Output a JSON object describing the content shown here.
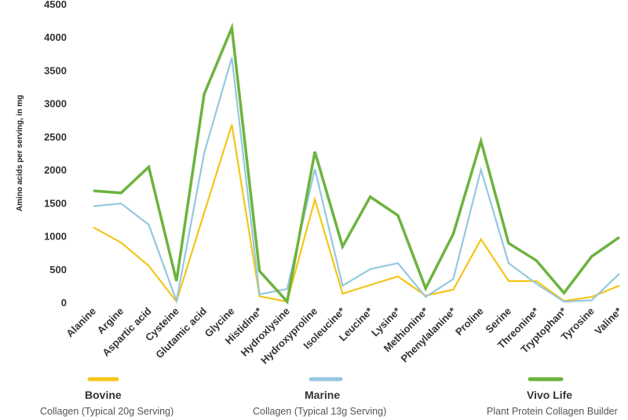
{
  "chart_data": {
    "type": "line",
    "ylabel": "Amino acids per serving, in mg",
    "ylim": [
      0,
      4500
    ],
    "yticks": [
      0,
      500,
      1000,
      1500,
      2000,
      2500,
      3000,
      3500,
      4000,
      4500
    ],
    "grid": false,
    "legend_position": "bottom",
    "categories": [
      "Alanine",
      "Argine",
      "Aspartic acid",
      "Cysteine",
      "Glutamic acid",
      "Glycine",
      "Histidine*",
      "Hydroxlysine",
      "Hydroxyproline",
      "Isoleucine*",
      "Leucine*",
      "Lysine*",
      "Methionine*",
      "Phenylalanine*",
      "Proline",
      "Serine",
      "Threonine*",
      "Tryptophan*",
      "Tyrosine",
      "Valine*"
    ],
    "series": [
      {
        "name": "Bovine",
        "description": "Collagen (Typical 20g Serving)",
        "color": "#f5c518",
        "values": [
          1130,
          900,
          550,
          10,
          1350,
          2680,
          90,
          10,
          1550,
          130,
          260,
          390,
          100,
          190,
          950,
          320,
          320,
          20,
          80,
          250
        ]
      },
      {
        "name": "Marine",
        "description": "Collagen (Typical 13g Serving)",
        "color": "#95c8df",
        "values": [
          1450,
          1490,
          1170,
          20,
          2250,
          3690,
          120,
          200,
          2010,
          250,
          500,
          590,
          80,
          350,
          2000,
          590,
          280,
          10,
          30,
          430
        ]
      },
      {
        "name": "Vivo Life",
        "description": "Plant Protein Collagen Builder",
        "color": "#6db33f",
        "values": [
          1680,
          1650,
          2040,
          320,
          3140,
          4140,
          470,
          10,
          2270,
          840,
          1590,
          1310,
          210,
          1030,
          2430,
          890,
          630,
          140,
          690,
          980
        ]
      }
    ]
  }
}
